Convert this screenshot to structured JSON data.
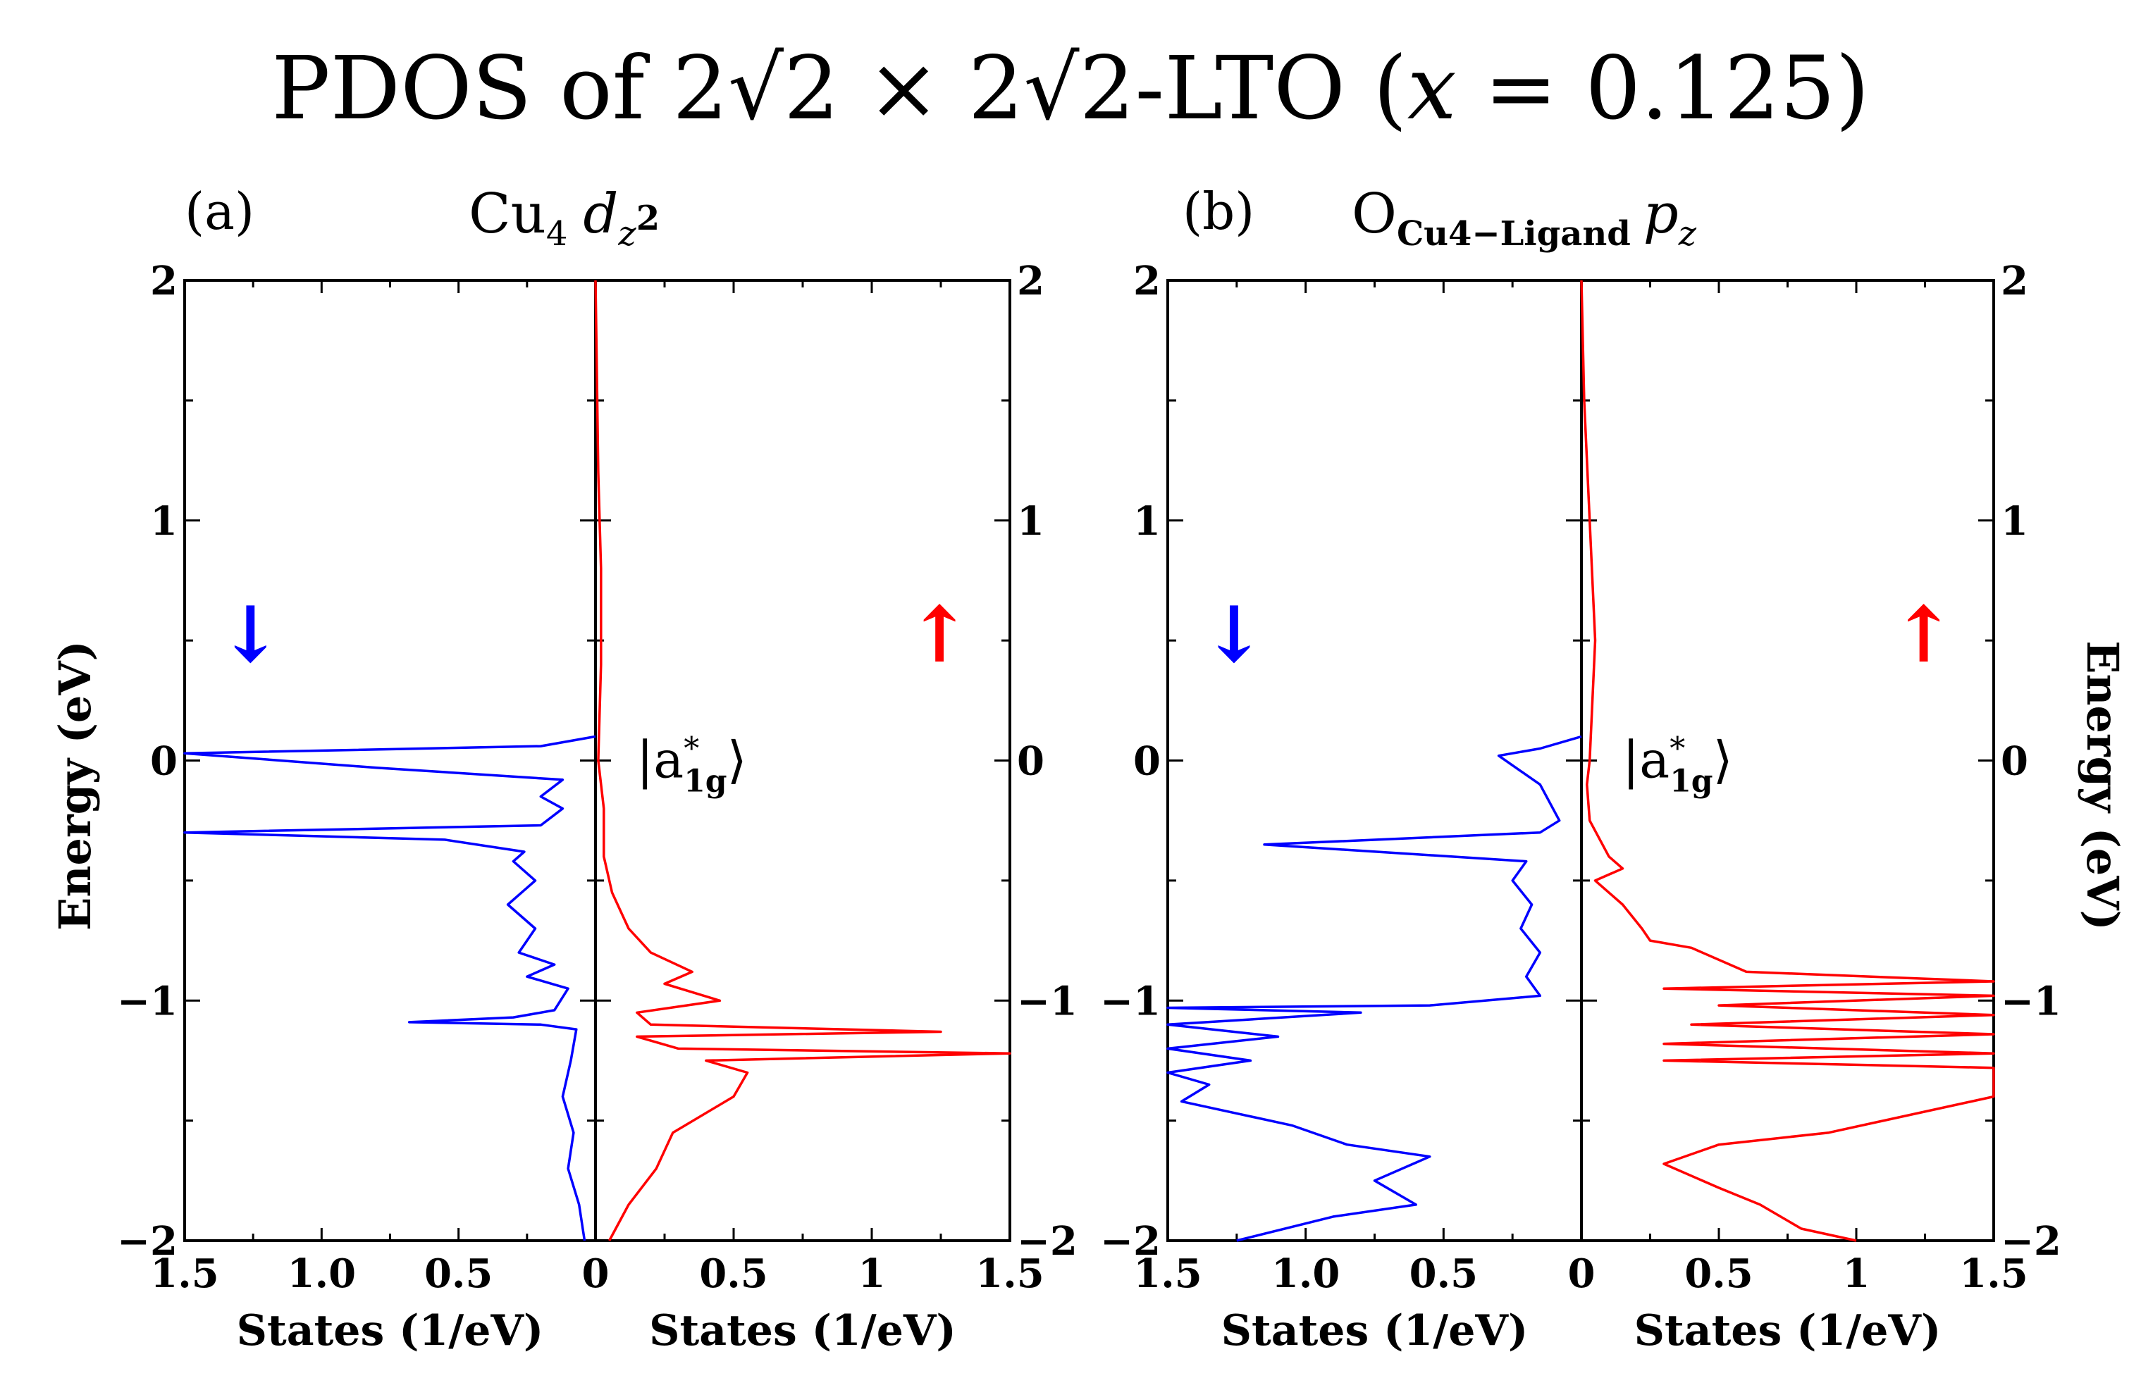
{
  "colors": {
    "spin_down": "#0000ff",
    "spin_up": "#ff0000",
    "axes": "#000000"
  },
  "chart_data": {
    "type": "line",
    "title": "PDOS of 2√2 × 2√2-LTO (x = 0.125)",
    "title_parts": {
      "pre": "PDOS of 2",
      "radical": "√2",
      "times": " × 2",
      "post": "-LTO (",
      "var": "x",
      "eq": " = 0.125)"
    },
    "ylabel": "Energy (eV)",
    "xlabel": "States (1/eV)",
    "ylim": [
      -2,
      2
    ],
    "yticks": [
      "−2",
      "−1",
      "0",
      "1",
      "2"
    ],
    "xticks_left": [
      "1.5",
      "1.0",
      "0.5",
      "0"
    ],
    "xticks_right": [
      "0.5",
      "1",
      "1.5"
    ],
    "annotation": {
      "pre": "|a",
      "sub": "1g",
      "sup": "*",
      "post": "⟩",
      "energy": 0
    },
    "spin_down_arrow": "↓",
    "spin_up_arrow": "↑",
    "panels": [
      {
        "label": "(a)",
        "orbital": {
          "base": "Cu",
          "base_sub": "4",
          "sym": "d",
          "sym_sub": "z",
          "sym_subsup": "2"
        },
        "series": [
          {
            "name": "spin down",
            "xlim": [
              1.5,
              0
            ],
            "points": [
              [
                0.04,
                -2.0
              ],
              [
                0.06,
                -1.85
              ],
              [
                0.1,
                -1.7
              ],
              [
                0.08,
                -1.55
              ],
              [
                0.12,
                -1.4
              ],
              [
                0.09,
                -1.25
              ],
              [
                0.07,
                -1.12
              ],
              [
                0.2,
                -1.1
              ],
              [
                0.68,
                -1.09
              ],
              [
                0.3,
                -1.07
              ],
              [
                0.15,
                -1.04
              ],
              [
                0.1,
                -0.95
              ],
              [
                0.25,
                -0.9
              ],
              [
                0.15,
                -0.85
              ],
              [
                0.28,
                -0.8
              ],
              [
                0.22,
                -0.7
              ],
              [
                0.32,
                -0.6
              ],
              [
                0.22,
                -0.5
              ],
              [
                0.3,
                -0.42
              ],
              [
                0.26,
                -0.38
              ],
              [
                0.55,
                -0.33
              ],
              [
                1.5,
                -0.3
              ],
              [
                0.2,
                -0.27
              ],
              [
                0.12,
                -0.2
              ],
              [
                0.2,
                -0.15
              ],
              [
                0.12,
                -0.08
              ],
              [
                0.8,
                -0.03
              ],
              [
                1.5,
                0.03
              ],
              [
                0.2,
                0.06
              ],
              [
                0.0,
                0.1
              ]
            ]
          },
          {
            "name": "spin up",
            "xlim": [
              0,
              1.5
            ],
            "points": [
              [
                0.05,
                -2.0
              ],
              [
                0.12,
                -1.85
              ],
              [
                0.22,
                -1.7
              ],
              [
                0.28,
                -1.55
              ],
              [
                0.5,
                -1.4
              ],
              [
                0.55,
                -1.3
              ],
              [
                0.4,
                -1.25
              ],
              [
                1.5,
                -1.22
              ],
              [
                0.3,
                -1.2
              ],
              [
                0.15,
                -1.15
              ],
              [
                1.25,
                -1.13
              ],
              [
                0.2,
                -1.1
              ],
              [
                0.15,
                -1.05
              ],
              [
                0.45,
                -1.0
              ],
              [
                0.25,
                -0.93
              ],
              [
                0.35,
                -0.88
              ],
              [
                0.2,
                -0.8
              ],
              [
                0.12,
                -0.7
              ],
              [
                0.06,
                -0.55
              ],
              [
                0.03,
                -0.4
              ],
              [
                0.03,
                -0.2
              ],
              [
                0.01,
                0.0
              ],
              [
                0.02,
                0.4
              ],
              [
                0.02,
                0.8
              ],
              [
                0.01,
                1.2
              ],
              [
                0.005,
                1.6
              ],
              [
                0.0,
                2.0
              ]
            ]
          }
        ]
      },
      {
        "label": "(b)",
        "orbital": {
          "base": "O",
          "base_sub": "Cu4−Ligand",
          "sym": "p",
          "sym_sub": "z"
        },
        "series": [
          {
            "name": "spin down",
            "xlim": [
              1.5,
              0
            ],
            "points": [
              [
                1.25,
                -2.0
              ],
              [
                0.9,
                -1.9
              ],
              [
                0.6,
                -1.85
              ],
              [
                0.75,
                -1.75
              ],
              [
                0.55,
                -1.65
              ],
              [
                0.85,
                -1.6
              ],
              [
                1.05,
                -1.52
              ],
              [
                1.25,
                -1.47
              ],
              [
                1.45,
                -1.42
              ],
              [
                1.35,
                -1.35
              ],
              [
                1.5,
                -1.3
              ],
              [
                1.2,
                -1.25
              ],
              [
                1.5,
                -1.2
              ],
              [
                1.1,
                -1.15
              ],
              [
                1.5,
                -1.1
              ],
              [
                0.8,
                -1.05
              ],
              [
                1.5,
                -1.03
              ],
              [
                0.55,
                -1.02
              ],
              [
                0.15,
                -0.98
              ],
              [
                0.2,
                -0.9
              ],
              [
                0.15,
                -0.8
              ],
              [
                0.22,
                -0.7
              ],
              [
                0.18,
                -0.6
              ],
              [
                0.25,
                -0.5
              ],
              [
                0.2,
                -0.42
              ],
              [
                1.15,
                -0.35
              ],
              [
                0.15,
                -0.3
              ],
              [
                0.08,
                -0.25
              ],
              [
                0.15,
                -0.1
              ],
              [
                0.3,
                0.02
              ],
              [
                0.15,
                0.05
              ],
              [
                0.0,
                0.1
              ]
            ]
          },
          {
            "name": "spin up",
            "xlim": [
              0,
              1.5
            ],
            "points": [
              [
                1.0,
                -2.0
              ],
              [
                0.8,
                -1.95
              ],
              [
                0.65,
                -1.85
              ],
              [
                0.5,
                -1.78
              ],
              [
                0.3,
                -1.68
              ],
              [
                0.5,
                -1.6
              ],
              [
                0.9,
                -1.55
              ],
              [
                1.5,
                -1.4
              ],
              [
                1.5,
                -1.28
              ],
              [
                0.3,
                -1.25
              ],
              [
                1.5,
                -1.22
              ],
              [
                0.3,
                -1.18
              ],
              [
                1.5,
                -1.14
              ],
              [
                0.4,
                -1.1
              ],
              [
                1.5,
                -1.06
              ],
              [
                0.5,
                -1.02
              ],
              [
                1.5,
                -0.98
              ],
              [
                0.3,
                -0.95
              ],
              [
                1.5,
                -0.92
              ],
              [
                0.6,
                -0.88
              ],
              [
                0.4,
                -0.78
              ],
              [
                0.25,
                -0.75
              ],
              [
                0.22,
                -0.7
              ],
              [
                0.15,
                -0.6
              ],
              [
                0.05,
                -0.5
              ],
              [
                0.15,
                -0.45
              ],
              [
                0.1,
                -0.4
              ],
              [
                0.03,
                -0.25
              ],
              [
                0.02,
                -0.1
              ],
              [
                0.03,
                0.0
              ],
              [
                0.05,
                0.5
              ],
              [
                0.03,
                1.0
              ],
              [
                0.01,
                1.5
              ],
              [
                0.0,
                2.0
              ]
            ]
          }
        ]
      }
    ]
  }
}
